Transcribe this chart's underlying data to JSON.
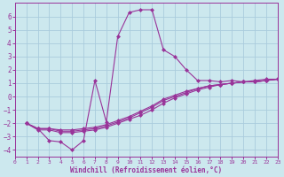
{
  "bg_color": "#cce8ee",
  "grid_color": "#aaccdd",
  "line_color": "#993399",
  "marker_color": "#993399",
  "xlabel": "Windchill (Refroidissement éolien,°C)",
  "xlabel_color": "#993399",
  "tick_color": "#993399",
  "xlim": [
    0,
    23
  ],
  "ylim": [
    -4.5,
    7.0
  ],
  "xticks": [
    0,
    1,
    2,
    3,
    4,
    5,
    6,
    7,
    8,
    9,
    10,
    11,
    12,
    13,
    14,
    15,
    16,
    17,
    18,
    19,
    20,
    21,
    22,
    23
  ],
  "yticks": [
    -4,
    -3,
    -2,
    -1,
    0,
    1,
    2,
    3,
    4,
    5,
    6
  ],
  "curve1_x": [
    1,
    2,
    3,
    4,
    5,
    6,
    7,
    8,
    9,
    10,
    11,
    12,
    13,
    14,
    15,
    16,
    17,
    18,
    19,
    20,
    21,
    22,
    23
  ],
  "curve1_y": [
    -2.0,
    -2.4,
    -3.3,
    -3.4,
    -4.0,
    -3.3,
    1.2,
    -1.9,
    4.5,
    6.3,
    6.5,
    6.5,
    3.5,
    3.0,
    2.0,
    1.2,
    1.2,
    1.1,
    1.2,
    1.1,
    1.2,
    1.3,
    1.3
  ],
  "curve2_x": [
    1,
    2,
    3,
    4,
    5,
    6,
    7,
    8,
    9,
    10,
    11,
    12,
    13,
    14,
    15,
    16,
    17,
    18,
    19,
    20,
    21,
    22,
    23
  ],
  "curve2_y": [
    -2.0,
    -2.5,
    -2.5,
    -2.7,
    -2.7,
    -2.6,
    -2.5,
    -2.3,
    -2.0,
    -1.7,
    -1.4,
    -1.0,
    -0.5,
    -0.1,
    0.2,
    0.5,
    0.7,
    0.9,
    1.0,
    1.1,
    1.1,
    1.2,
    1.3
  ],
  "curve3_x": [
    1,
    2,
    3,
    4,
    5,
    6,
    7,
    8,
    9,
    10,
    11,
    12,
    13,
    14,
    15,
    16,
    17,
    18,
    19,
    20,
    21,
    22,
    23
  ],
  "curve3_y": [
    -2.0,
    -2.4,
    -2.4,
    -2.6,
    -2.6,
    -2.5,
    -2.4,
    -2.2,
    -1.9,
    -1.6,
    -1.2,
    -0.8,
    -0.3,
    0.0,
    0.3,
    0.6,
    0.8,
    0.9,
    1.0,
    1.1,
    1.1,
    1.2,
    1.3
  ],
  "curve4_x": [
    1,
    2,
    3,
    4,
    5,
    6,
    7,
    8,
    9,
    10,
    11,
    12,
    13,
    14,
    15,
    16,
    17,
    18,
    19,
    20,
    21,
    22,
    23
  ],
  "curve4_y": [
    -2.0,
    -2.4,
    -2.4,
    -2.5,
    -2.5,
    -2.4,
    -2.3,
    -2.1,
    -1.8,
    -1.5,
    -1.1,
    -0.7,
    -0.2,
    0.1,
    0.4,
    0.6,
    0.8,
    0.9,
    1.0,
    1.1,
    1.1,
    1.2,
    1.3
  ]
}
